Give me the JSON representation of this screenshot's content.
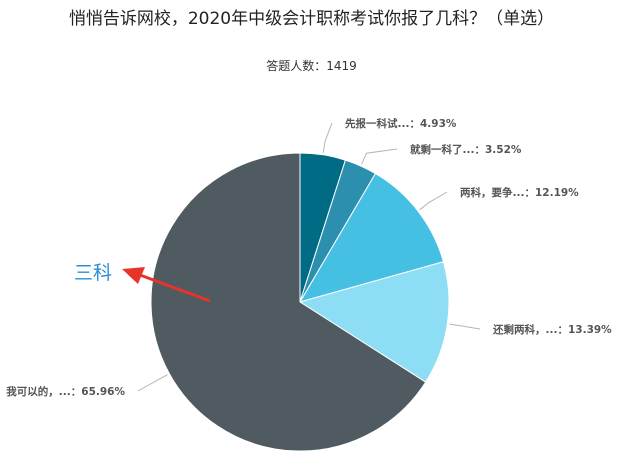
{
  "title": "悄悄告诉网校，2020年中级会计职称考试你报了几科？（单选）",
  "subtitle": "答题人数：1419",
  "chart_data": {
    "type": "pie",
    "title": "悄悄告诉网校，2020年中级会计职称考试你报了几科？（单选）",
    "subtitle": "答题人数：1419",
    "slices": [
      {
        "label": "先报一科试...",
        "value": 4.93,
        "display": "先报一科试...：4.93%",
        "color": "#006b85"
      },
      {
        "label": "就剩一科了...",
        "value": 3.52,
        "display": "就剩一科了...：3.52%",
        "color": "#2d8fae"
      },
      {
        "label": "两科，要争...",
        "value": 12.19,
        "display": "两科，要争...：12.19%",
        "color": "#45c0e3"
      },
      {
        "label": "还剩两科，...",
        "value": 13.39,
        "display": "还剩两科，...：13.39%",
        "color": "#8dddf5"
      },
      {
        "label": "我可以的，...",
        "value": 65.96,
        "display": "我可以的，...：65.96%",
        "color": "#4f5a61"
      }
    ],
    "annotation": {
      "text": "三科",
      "arrow_color": "#e8332a"
    }
  }
}
